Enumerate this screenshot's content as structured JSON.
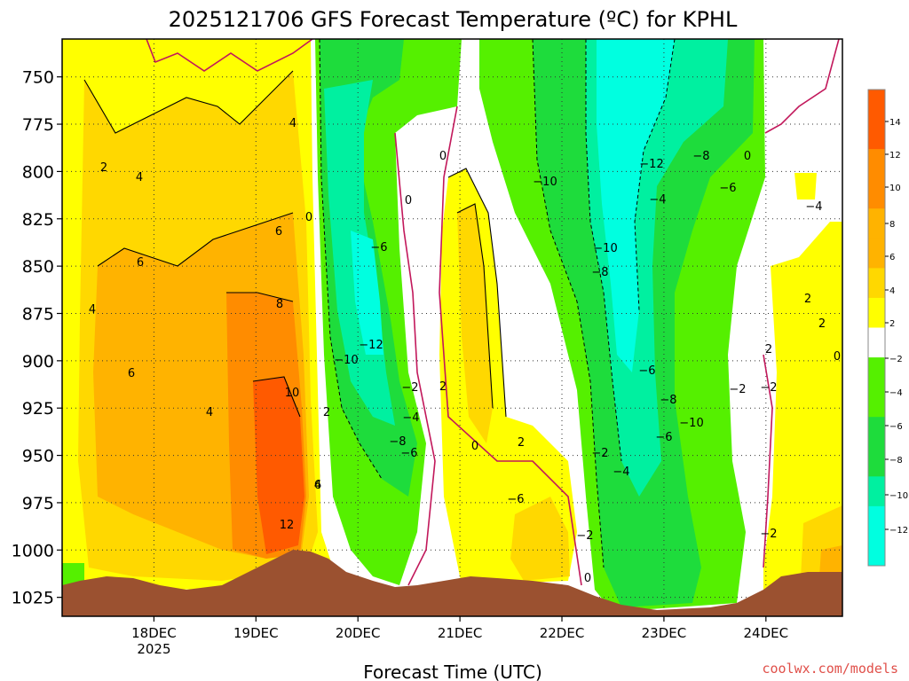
{
  "chart_data": {
    "type": "heatmap",
    "title": "2025121706 GFS Forecast Temperature (ºC) for KPHL",
    "xlabel": "Forecast Time (UTC)",
    "ylabel": "",
    "credit": "coolwx.com/models",
    "y_axis": {
      "ticks": [
        750,
        775,
        800,
        825,
        850,
        875,
        900,
        925,
        950,
        975,
        1000,
        1025
      ],
      "range": [
        730,
        1035
      ],
      "inverted": true
    },
    "x_axis": {
      "ticks": [
        {
          "label": "18DEC",
          "sublabel": "2025",
          "value": 1.0
        },
        {
          "label": "19DEC",
          "sublabel": "",
          "value": 2.0
        },
        {
          "label": "20DEC",
          "sublabel": "",
          "value": 3.0
        },
        {
          "label": "21DEC",
          "sublabel": "",
          "value": 4.0
        },
        {
          "label": "22DEC",
          "sublabel": "",
          "value": 5.0
        },
        {
          "label": "23DEC",
          "sublabel": "",
          "value": 6.0
        },
        {
          "label": "24DEC",
          "sublabel": "",
          "value": 7.0
        }
      ],
      "range": [
        0.1,
        7.75
      ]
    },
    "grid": true,
    "colorbar": {
      "labels": [
        "14",
        "12",
        "10",
        "8",
        "6",
        "4",
        "2",
        "−2",
        "−4",
        "−6",
        "−8",
        "−10",
        "−12"
      ],
      "placement": "right"
    },
    "contour_labels": [
      "2",
      "4",
      "6",
      "4",
      "6",
      "4",
      "6",
      "8",
      "10",
      "12",
      "4",
      "2",
      "0",
      "4",
      "6",
      "−6",
      "−12",
      "−10",
      "−2",
      "−4",
      "−8",
      "−6",
      "0",
      "0",
      "2",
      "0",
      "2",
      "−6",
      "−10",
      "−12",
      "−10",
      "−8",
      "−6",
      "−4",
      "−8",
      "−6",
      "−8",
      "−10",
      "−6",
      "−4",
      "−2",
      "−2",
      "0",
      "0",
      "−4",
      "−2",
      "2",
      "2",
      "2",
      "0",
      "−2",
      "−2"
    ],
    "colors": {
      "orange_dark": "#ff5a00",
      "orange": "#ff8c00",
      "light_orange": "#ffb300",
      "gold": "#ffd800",
      "yellow": "#ffff00",
      "white": "#ffffff",
      "green": "#55f000",
      "mid_green": "#1edc3c",
      "teal": "#00f0a0",
      "cyan": "#00ffe0",
      "terrain": "#9b5130",
      "negative_line": "#c2185b"
    }
  }
}
